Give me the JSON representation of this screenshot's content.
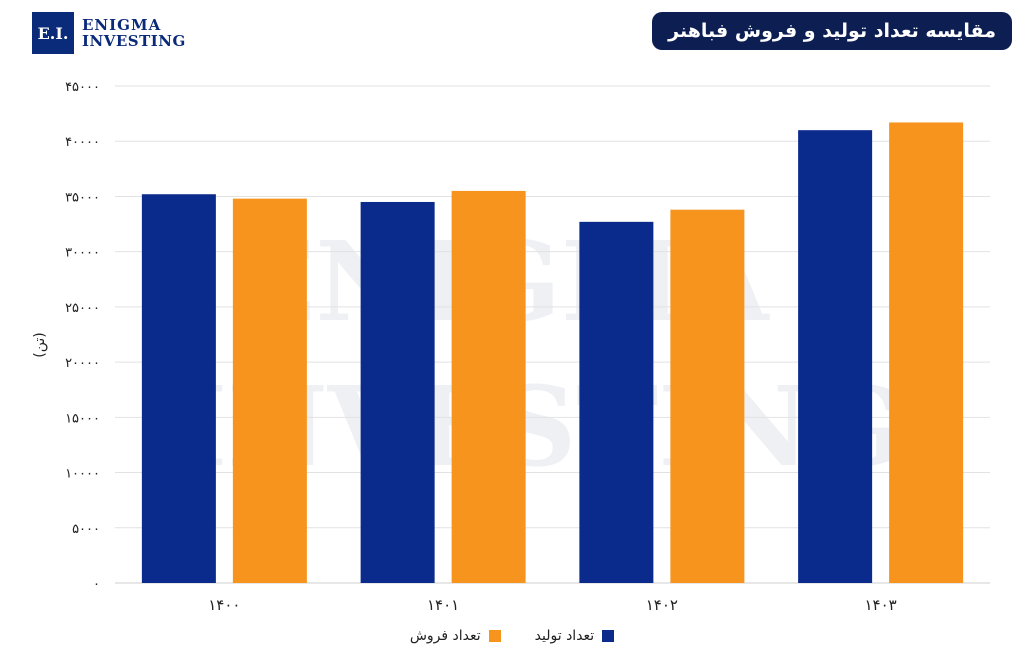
{
  "logo": {
    "box": "E.I.",
    "line1": "ENIGMA",
    "line2": "INVESTING"
  },
  "watermark": {
    "line1": "ENIGMA",
    "line2": "INVESTING"
  },
  "colors": {
    "production": "#0a2a8c",
    "sales": "#f7941d",
    "title_bg": "#0d1f52"
  },
  "chart_data": {
    "type": "bar",
    "title": "مقایسه تعداد تولید و فروش فباهنر",
    "xlabel": "",
    "ylabel": "(تن)",
    "categories": [
      "۱۴۰۰",
      "۱۴۰۱",
      "۱۴۰۲",
      "۱۴۰۳"
    ],
    "series": [
      {
        "name": "تعداد تولید",
        "values": [
          35200,
          34500,
          32700,
          41000
        ]
      },
      {
        "name": "تعداد فروش",
        "values": [
          34800,
          35500,
          33800,
          41700
        ]
      }
    ],
    "ylim": [
      0,
      45000
    ],
    "yticks": [
      0,
      5000,
      10000,
      15000,
      20000,
      25000,
      30000,
      35000,
      40000,
      45000
    ],
    "ytick_labels": [
      "۰",
      "۵۰۰۰",
      "۱۰۰۰۰",
      "۱۵۰۰۰",
      "۲۰۰۰۰",
      "۲۵۰۰۰",
      "۳۰۰۰۰",
      "۳۵۰۰۰",
      "۴۰۰۰۰",
      "۴۵۰۰۰"
    ],
    "grid": true,
    "legend_position": "bottom"
  }
}
